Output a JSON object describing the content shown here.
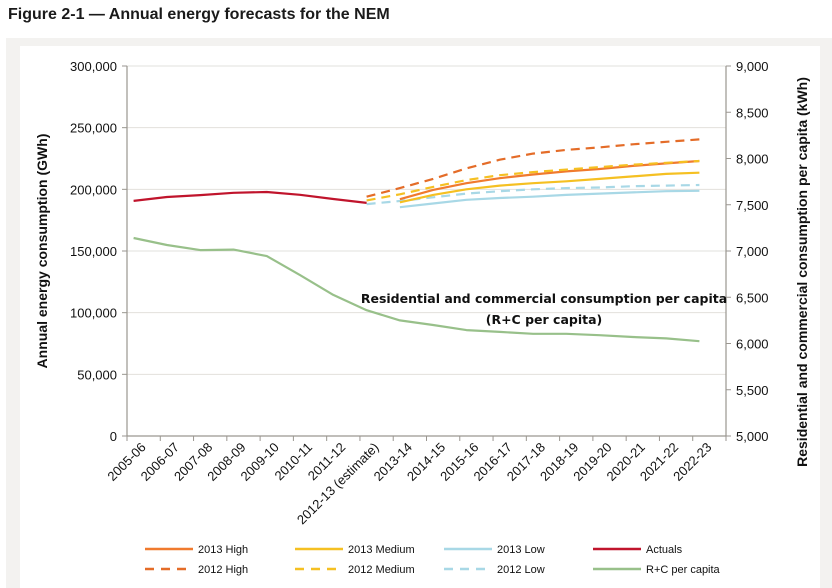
{
  "figure": {
    "title": "Figure 2-1 — Annual energy forecasts for the NEM"
  },
  "chart_data": {
    "type": "line",
    "title": "Figure 2-1 — Annual energy forecasts for the NEM",
    "xlabel": "",
    "ylabel": "Annual energy consumption (GWh)",
    "y2label": "Residential and commercial  consumption per capita (kWh)",
    "ylim": [
      0,
      300000
    ],
    "y2lim": [
      5000,
      9000
    ],
    "yticks": [
      "0",
      "50,000",
      "100,000",
      "150,000",
      "200,000",
      "250,000",
      "300,000"
    ],
    "y2ticks": [
      "5,000",
      "5,500",
      "6,000",
      "6,500",
      "7,000",
      "7,500",
      "8,000",
      "8,500",
      "9,000"
    ],
    "grid": true,
    "legend_position": "bottom",
    "categories": [
      "2005-06",
      "2006-07",
      "2007-08",
      "2008-09",
      "2009-10",
      "2010-11",
      "2011-12",
      "2012-13 (estimate)",
      "2013-14",
      "2014-15",
      "2015-16",
      "2016-17",
      "2017-18",
      "2018-19",
      "2019-20",
      "2020-21",
      "2021-22",
      "2022-23"
    ],
    "annotation": {
      "line1": "Residential and commercial consumption per capita",
      "line2": "(R+C per capita)"
    },
    "series": [
      {
        "name": "2013 High",
        "axis": "left",
        "style": "solid",
        "color": "#f07a2e",
        "values": [
          null,
          null,
          null,
          null,
          null,
          null,
          null,
          null,
          192000,
          199500,
          205000,
          209000,
          212000,
          214500,
          216500,
          219000,
          221000,
          223000
        ]
      },
      {
        "name": "2012 High",
        "axis": "left",
        "style": "dashed",
        "color": "#e46c28",
        "values": [
          null,
          null,
          null,
          null,
          null,
          null,
          null,
          194000,
          201000,
          208500,
          217000,
          224000,
          229000,
          232000,
          234000,
          236500,
          238500,
          240500
        ]
      },
      {
        "name": "2013 Medium",
        "axis": "left",
        "style": "solid",
        "color": "#f5c022",
        "values": [
          null,
          null,
          null,
          null,
          null,
          null,
          null,
          null,
          189500,
          195500,
          200000,
          203000,
          205000,
          206500,
          208500,
          210500,
          212500,
          213500
        ]
      },
      {
        "name": "2012 Medium",
        "axis": "left",
        "style": "dashed",
        "color": "#f5c022",
        "values": [
          null,
          null,
          null,
          null,
          null,
          null,
          null,
          191000,
          196000,
          202000,
          207500,
          211500,
          214000,
          216000,
          218000,
          220000,
          221500,
          223000
        ]
      },
      {
        "name": "2013 Low",
        "axis": "left",
        "style": "solid",
        "color": "#a8d8e6",
        "values": [
          null,
          null,
          null,
          null,
          null,
          null,
          null,
          null,
          185500,
          188500,
          191500,
          193000,
          194000,
          195500,
          196500,
          197500,
          198500,
          198800
        ]
      },
      {
        "name": "2012 Low",
        "axis": "left",
        "style": "dashed",
        "color": "#a8d8e6",
        "values": [
          null,
          null,
          null,
          null,
          null,
          null,
          null,
          188000,
          190500,
          193500,
          196500,
          198500,
          200000,
          201000,
          201500,
          202500,
          203000,
          203500
        ]
      },
      {
        "name": "Actuals",
        "axis": "left",
        "style": "solid",
        "color": "#c0142c",
        "values": [
          190600,
          193800,
          195300,
          197200,
          197800,
          195600,
          192200,
          189000,
          null,
          null,
          null,
          null,
          null,
          null,
          null,
          null,
          null,
          null
        ]
      },
      {
        "name": "R+C per capita",
        "axis": "right",
        "style": "solid",
        "color": "#98c08a",
        "values": [
          7140,
          7065,
          7010,
          7015,
          6945,
          6740,
          6525,
          6360,
          6250,
          6200,
          6145,
          6125,
          6105,
          6105,
          6090,
          6070,
          6055,
          6025
        ]
      }
    ]
  }
}
